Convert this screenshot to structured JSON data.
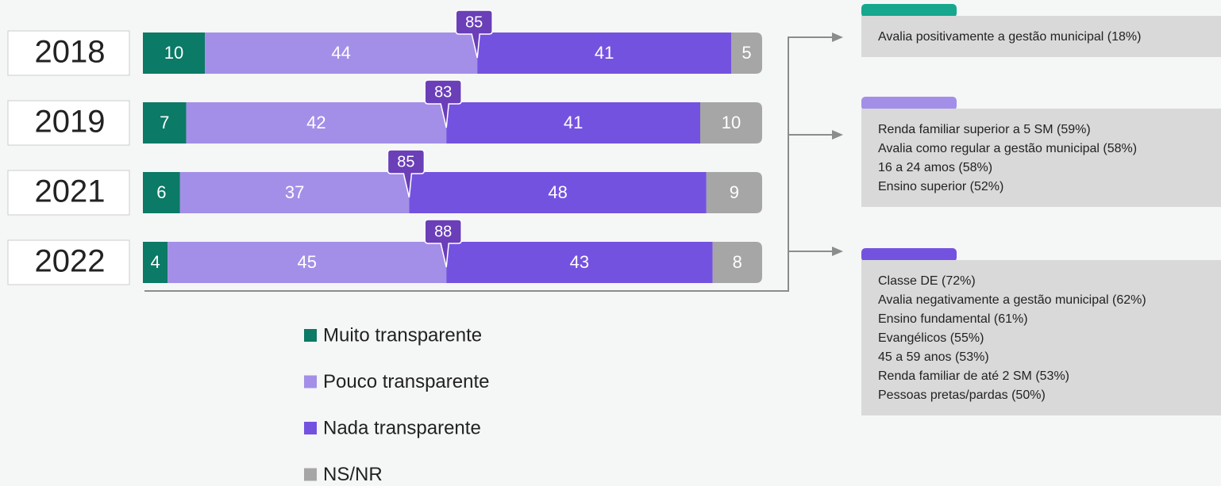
{
  "chart_data": {
    "type": "stacked-bar",
    "categories": [
      "2018",
      "2019",
      "2021",
      "2022"
    ],
    "series": [
      {
        "name": "Muito transparente",
        "color": "#0b7a66",
        "values": [
          10,
          7,
          6,
          4
        ]
      },
      {
        "name": "Pouco transparente",
        "color": "#a38fe8",
        "values": [
          44,
          42,
          37,
          45
        ]
      },
      {
        "name": "Nada transparente",
        "color": "#7452e0",
        "values": [
          41,
          41,
          48,
          43
        ]
      },
      {
        "name": "NS/NR",
        "color": "#a6a6a6",
        "values": [
          5,
          10,
          9,
          8
        ]
      }
    ],
    "callouts": [
      85,
      83,
      85,
      88
    ],
    "callout_color": "#6a3fb8",
    "annotations": [
      {
        "color": "#17a78f",
        "lines": [
          "Avalia positivamente a gestão municipal (18%)"
        ]
      },
      {
        "color": "#a38fe8",
        "lines": [
          "Renda familiar superior a 5 SM (59%)",
          "Avalia como regular a gestão municipal (58%)",
          "16 a 24 amos (58%)",
          "Ensino superior (52%)"
        ]
      },
      {
        "color": "#7452e0",
        "lines": [
          "Classe DE (72%)",
          "Avalia negativamente a gestão municipal (62%)",
          "Ensino fundamental (61%)",
          "Evangélicos (55%)",
          "45 a 59 anos (53%)",
          "Renda familiar de até 2 SM (53%)",
          "Pessoas pretas/pardas (50%)"
        ]
      }
    ]
  }
}
